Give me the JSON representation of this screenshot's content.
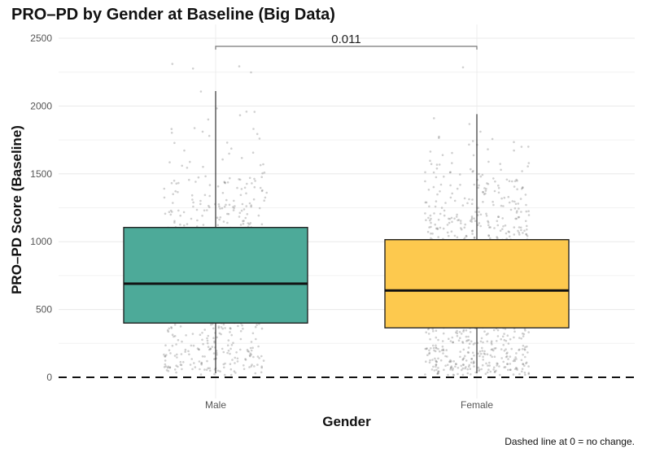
{
  "chart_data": {
    "type": "boxplot",
    "title": "PRO–PD by Gender at Baseline (Big Data)",
    "xlabel": "Gender",
    "ylabel": "PRO–PD Score (Baseline)",
    "caption": "Dashed line at 0 = no change.",
    "categories": [
      "Male",
      "Female"
    ],
    "ylim": [
      -50,
      2600
    ],
    "yticks": [
      0,
      500,
      1000,
      1500,
      2000,
      2500
    ],
    "ytick_labels": [
      "0",
      "500",
      "1000",
      "1500",
      "2000",
      "2500"
    ],
    "grid": true,
    "reference_line": {
      "y": 0,
      "style": "dashed"
    },
    "series": [
      {
        "name": "Male",
        "color": "#4DAA99",
        "whisker_low": 30,
        "q1": 400,
        "median": 690,
        "q3": 1105,
        "whisker_high": 2110,
        "jitter_n": 700,
        "max_point": 2330
      },
      {
        "name": "Female",
        "color": "#FDC94E",
        "whisker_low": 30,
        "q1": 365,
        "median": 640,
        "q3": 1015,
        "whisker_high": 1940,
        "jitter_n": 1100,
        "max_point": 2430
      }
    ],
    "comparison": {
      "from": "Male",
      "to": "Female",
      "label": "0.011",
      "y": 2450
    }
  }
}
